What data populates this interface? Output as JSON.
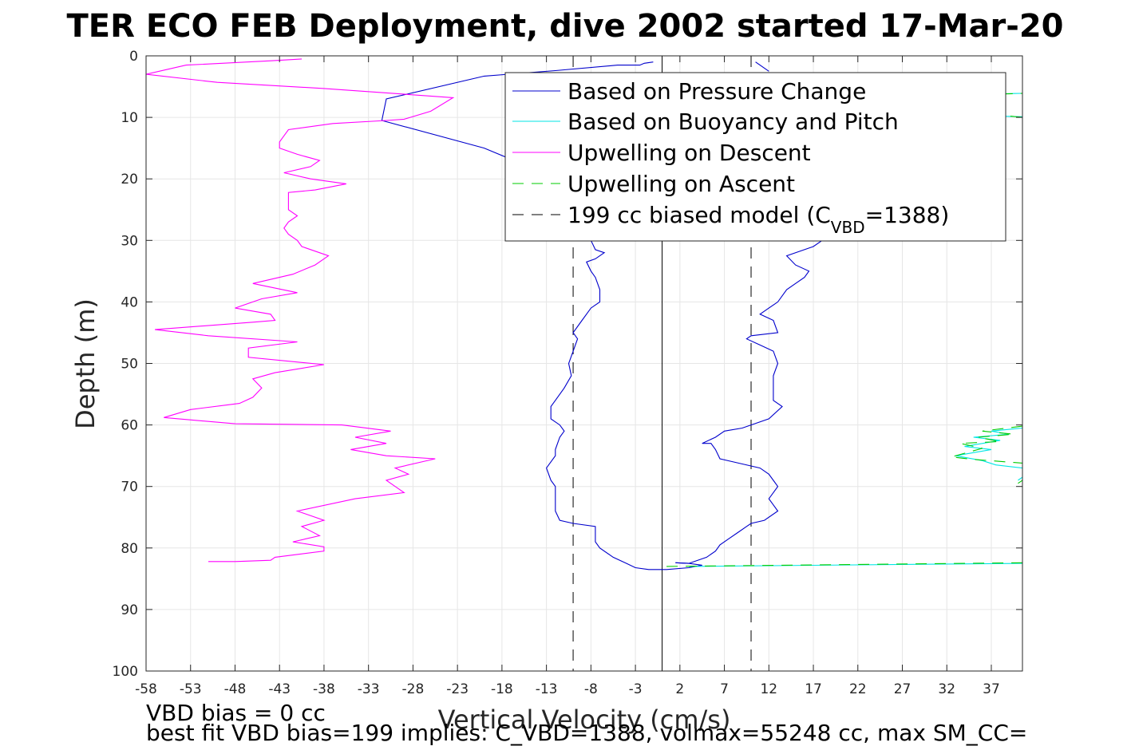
{
  "chart_data": {
    "type": "line",
    "title": "TER ECO FEB Deployment, dive 2002 started 17-Mar-20",
    "xlabel": "Vertical Velocity (cm/s)",
    "ylabel": "Depth (m)",
    "xlim": [
      -58,
      40.5
    ],
    "ylim": [
      100,
      0
    ],
    "y_reversed": true,
    "grid": true,
    "legend_location": "top-right",
    "x_ticks": [
      "-58",
      "-53",
      "-48",
      "-43",
      "-38",
      "-33",
      "-28",
      "-23",
      "-18",
      "-13",
      "-8",
      "-3",
      "2",
      "7",
      "12",
      "17",
      "22",
      "27",
      "32",
      "37"
    ],
    "y_ticks": [
      "0",
      "10",
      "20",
      "30",
      "40",
      "50",
      "60",
      "70",
      "80",
      "90",
      "100"
    ],
    "legend": {
      "pressure": "Based on Pressure Change",
      "buoyancy": "Based on Buoyancy and Pitch",
      "up_descent": "Upwelling on Descent",
      "up_ascent": "Upwelling on Ascent",
      "model_prefix": "199 cc biased model (C",
      "model_sub": "VBD",
      "model_suffix": "=1388)"
    },
    "colors": {
      "pressure": "#0000cc",
      "buoyancy": "#00e6e6",
      "up_descent": "#ff00ff",
      "up_ascent": "#00cc00",
      "model": "#000000"
    },
    "series": [
      {
        "name": "Based on Pressure Change",
        "key": "pressure",
        "segments": [
          [
            [
              -1,
              1
            ],
            [
              -2,
              1.2
            ],
            [
              -2.5,
              1.5
            ],
            [
              -5,
              1.5
            ],
            [
              -12,
              2.4
            ],
            [
              -20,
              3.3
            ],
            [
              -31,
              7.0
            ],
            [
              -31.5,
              10.5
            ],
            [
              -20,
              15
            ],
            [
              -15,
              18
            ]
          ],
          [
            [
              -8,
              30
            ],
            [
              -7.5,
              31.5
            ],
            [
              -6.5,
              32
            ],
            [
              -7.5,
              33
            ],
            [
              -8.5,
              33.5
            ],
            [
              -8,
              35
            ],
            [
              -7.5,
              36
            ],
            [
              -7,
              38
            ],
            [
              -7,
              40
            ],
            [
              -8,
              41
            ],
            [
              -9,
              43
            ],
            [
              -10,
              45
            ],
            [
              -9.5,
              46
            ],
            [
              -10,
              48
            ],
            [
              -10.5,
              50
            ],
            [
              -10.2,
              52
            ],
            [
              -11,
              54
            ],
            [
              -12,
              56
            ],
            [
              -12.5,
              57
            ],
            [
              -12.5,
              59
            ],
            [
              -11.5,
              60
            ],
            [
              -11,
              61
            ],
            [
              -11.5,
              62
            ],
            [
              -12,
              64
            ],
            [
              -12,
              65
            ],
            [
              -13,
              67
            ],
            [
              -12.5,
              69
            ],
            [
              -12,
              70
            ],
            [
              -12,
              72
            ],
            [
              -12,
              74
            ],
            [
              -11.5,
              75.5
            ],
            [
              -10,
              76
            ],
            [
              -7.5,
              76.5
            ],
            [
              -7.5,
              78
            ],
            [
              -7.5,
              79
            ],
            [
              -7,
              80
            ],
            [
              -5.5,
              81.5
            ],
            [
              -4,
              82.5
            ],
            [
              -3,
              83.2
            ],
            [
              -1.5,
              83.5
            ],
            [
              0.5,
              83.5
            ],
            [
              3,
              83.2
            ],
            [
              4.5,
              82.8
            ],
            [
              3,
              82.5
            ],
            [
              1.5,
              82.4
            ]
          ],
          [
            [
              1.5,
              82.4
            ],
            [
              3,
              82.5
            ],
            [
              5,
              81.5
            ],
            [
              6,
              80.5
            ],
            [
              6.5,
              79.5
            ],
            [
              7.5,
              78.5
            ],
            [
              8.5,
              77.5
            ],
            [
              9.5,
              76.5
            ],
            [
              10,
              76
            ],
            [
              11.5,
              75.5
            ],
            [
              13,
              74
            ],
            [
              12.5,
              73
            ],
            [
              12,
              72
            ],
            [
              12.5,
              71
            ],
            [
              13,
              70
            ],
            [
              12.5,
              69
            ],
            [
              12,
              68
            ],
            [
              11,
              67
            ],
            [
              8,
              66
            ],
            [
              6.5,
              65.5
            ],
            [
              6,
              64
            ],
            [
              5.5,
              63
            ],
            [
              4.5,
              63
            ],
            [
              6,
              62
            ],
            [
              7,
              61
            ],
            [
              9,
              60.5
            ],
            [
              12,
              59
            ],
            [
              13.5,
              57
            ],
            [
              12.5,
              56
            ],
            [
              12.5,
              55
            ],
            [
              12.5,
              54
            ],
            [
              12.5,
              52
            ],
            [
              13,
              50
            ],
            [
              12.5,
              48
            ],
            [
              11,
              47
            ],
            [
              9.5,
              46
            ],
            [
              10,
              45.5
            ],
            [
              13,
              45
            ],
            [
              12.5,
              43
            ],
            [
              11,
              42
            ],
            [
              12,
              41
            ],
            [
              13,
              40
            ],
            [
              14,
              38
            ],
            [
              15,
              37
            ],
            [
              16,
              36
            ],
            [
              16.5,
              35
            ],
            [
              15,
              34
            ],
            [
              14,
              32.5
            ],
            [
              17,
              31
            ],
            [
              19,
              29
            ]
          ],
          [
            [
              10.5,
              1
            ],
            [
              12,
              2.5
            ]
          ]
        ]
      },
      {
        "name": "Based on Buoyancy and Pitch",
        "key": "buoyancy",
        "segments": [
          [
            [
              3,
              83
            ],
            [
              40.5,
              82.5
            ]
          ],
          [
            [
              37,
              6.2
            ],
            [
              40.5,
              6.1
            ]
          ],
          [
            [
              38,
              9.8
            ],
            [
              40.5,
              9.9
            ]
          ],
          [
            [
              40.5,
              60.5
            ],
            [
              37,
              61
            ],
            [
              39,
              61.5
            ],
            [
              35,
              62
            ],
            [
              38,
              62.5
            ],
            [
              34,
              63.5
            ],
            [
              37,
              64
            ],
            [
              33,
              65
            ],
            [
              36,
              65.8
            ],
            [
              37.5,
              66.5
            ],
            [
              40.5,
              67
            ]
          ],
          [
            [
              40.5,
              68.5
            ],
            [
              40,
              69
            ]
          ]
        ]
      },
      {
        "name": "Upwelling on Descent",
        "key": "up_descent",
        "segments": [
          [
            [
              -40.5,
              0.5
            ],
            [
              -44,
              0.8
            ],
            [
              -53.5,
              1.5
            ],
            [
              -58,
              3
            ],
            [
              -50,
              4.3
            ],
            [
              -38,
              5.3
            ],
            [
              -23.5,
              6.8
            ],
            [
              -26,
              9
            ],
            [
              -29,
              10.3
            ],
            [
              -31,
              10.5
            ],
            [
              -37,
              11
            ],
            [
              -42,
              12
            ],
            [
              -42.5,
              13
            ],
            [
              -43,
              14
            ],
            [
              -43,
              15
            ],
            [
              -41,
              16
            ],
            [
              -38.5,
              17
            ],
            [
              -39.5,
              18
            ],
            [
              -42.5,
              19
            ],
            [
              -39.5,
              20
            ],
            [
              -35.5,
              20.8
            ],
            [
              -39,
              21.8
            ],
            [
              -42,
              22.2
            ],
            [
              -42,
              24
            ],
            [
              -42,
              25
            ],
            [
              -41,
              26
            ],
            [
              -42,
              27
            ],
            [
              -42.5,
              28
            ],
            [
              -42,
              29
            ],
            [
              -41,
              30
            ],
            [
              -40.5,
              31
            ],
            [
              -37.5,
              32.5
            ],
            [
              -39,
              34
            ],
            [
              -41.5,
              35.5
            ],
            [
              -46,
              37
            ],
            [
              -41,
              38.5
            ],
            [
              -45,
              39.5
            ],
            [
              -48,
              41
            ],
            [
              -44,
              42
            ],
            [
              -43.5,
              43
            ],
            [
              -46,
              43.3
            ],
            [
              -57,
              44.5
            ],
            [
              -51,
              45.5
            ],
            [
              -41,
              46.5
            ],
            [
              -46.5,
              47.5
            ],
            [
              -46.5,
              48
            ],
            [
              -46.5,
              49
            ],
            [
              -38,
              50.2
            ],
            [
              -43.5,
              51.5
            ],
            [
              -46,
              52.5
            ],
            [
              -45,
              54
            ],
            [
              -46,
              55.5
            ],
            [
              -47.5,
              56.5
            ],
            [
              -53,
              57.5
            ],
            [
              -56,
              58.8
            ],
            [
              -48,
              59.8
            ],
            [
              -36,
              60
            ],
            [
              -30.5,
              61
            ],
            [
              -34.5,
              62
            ],
            [
              -31,
              63
            ],
            [
              -35,
              64
            ],
            [
              -31,
              65
            ],
            [
              -25.5,
              65.5
            ],
            [
              -30,
              67
            ],
            [
              -28.5,
              68
            ],
            [
              -31,
              69
            ],
            [
              -30,
              70
            ],
            [
              -29,
              71
            ],
            [
              -34.5,
              72
            ],
            [
              -41,
              74
            ],
            [
              -38,
              75.5
            ],
            [
              -40.5,
              76.5
            ],
            [
              -38.5,
              78
            ],
            [
              -41.5,
              79
            ],
            [
              -38,
              79.8
            ],
            [
              -38,
              80.5
            ],
            [
              -43.5,
              81.5
            ],
            [
              -44,
              82
            ],
            [
              -48,
              82.2
            ],
            [
              -51,
              82.2
            ]
          ]
        ]
      },
      {
        "name": "Upwelling on Ascent",
        "key": "up_ascent",
        "segments": [
          [
            [
              0.5,
              83
            ],
            [
              40.5,
              82.4
            ]
          ],
          [
            [
              36,
              6.3
            ],
            [
              40.5,
              6.1
            ]
          ],
          [
            [
              37,
              9.5
            ],
            [
              40.5,
              10
            ]
          ],
          [
            [
              40.5,
              60.2
            ],
            [
              36,
              61
            ],
            [
              39.5,
              61.5
            ],
            [
              35.5,
              62
            ],
            [
              38,
              62.7
            ],
            [
              33.5,
              63
            ],
            [
              36,
              63.8
            ],
            [
              32.5,
              65.2
            ],
            [
              35,
              65.6
            ],
            [
              40.5,
              66.2
            ]
          ],
          [
            [
              40.5,
              69
            ],
            [
              40,
              69.5
            ]
          ]
        ]
      }
    ],
    "model_lines_x": [
      -10,
      10
    ],
    "zero_line_x": 0,
    "notes": [
      "VBD bias = 0 cc",
      "best fit VBD bias=199 implies: C_VBD=1388, volmax=55248 cc, max SM_CC="
    ]
  }
}
